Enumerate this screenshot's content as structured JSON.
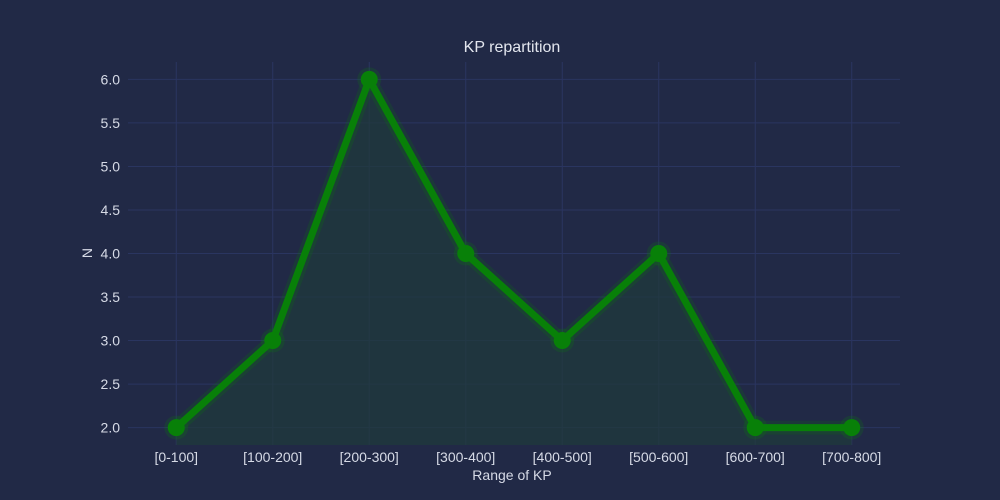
{
  "chart_data": {
    "type": "line",
    "title": "KP repartition",
    "xlabel": "Range of KP",
    "ylabel": "N",
    "categories": [
      "[0-100]",
      "[100-200]",
      "[200-300]",
      "[300-400]",
      "[400-500]",
      "[500-600]",
      "[600-700]",
      "[700-800]"
    ],
    "series": [
      {
        "values": [
          2,
          3,
          6,
          4,
          3,
          4,
          2,
          2
        ]
      }
    ],
    "ylim": [
      1.8,
      6.2
    ],
    "yticks": [
      "2.0",
      "2.5",
      "3.0",
      "3.5",
      "4.0",
      "4.5",
      "5.0",
      "5.5",
      "6.0"
    ],
    "grid": true,
    "legend": "none",
    "colors": {
      "background": "#212946",
      "line": "#088008",
      "fill": "#1f3a3a",
      "grid": "#2a3560",
      "text": "#d6dae6"
    }
  }
}
